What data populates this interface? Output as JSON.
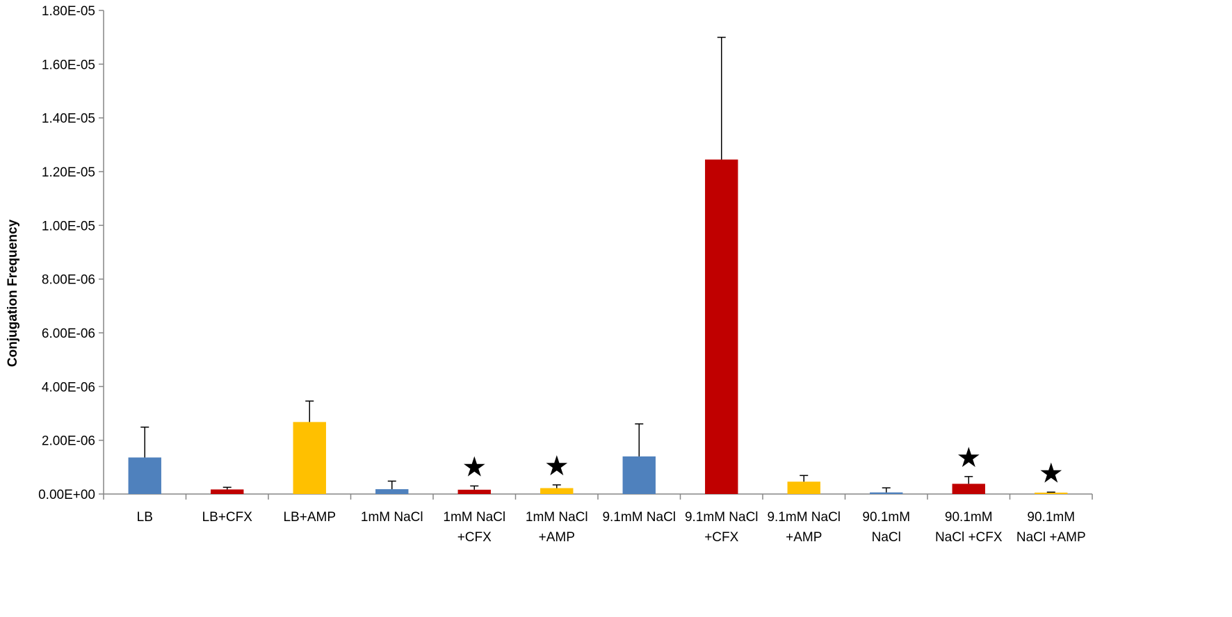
{
  "chart_data": {
    "type": "bar",
    "title": "",
    "xlabel": "",
    "ylabel": "Conjugation Frequency",
    "ylim": [
      0,
      1.8e-05
    ],
    "yticks": [
      {
        "value": 0,
        "label": "0.00E+00"
      },
      {
        "value": 2e-06,
        "label": "2.00E-06"
      },
      {
        "value": 4e-06,
        "label": "4.00E-06"
      },
      {
        "value": 6e-06,
        "label": "6.00E-06"
      },
      {
        "value": 8e-06,
        "label": "8.00E-06"
      },
      {
        "value": 1e-05,
        "label": "1.00E-05"
      },
      {
        "value": 1.2e-05,
        "label": "1.20E-05"
      },
      {
        "value": 1.4e-05,
        "label": "1.40E-05"
      },
      {
        "value": 1.6e-05,
        "label": "1.60E-05"
      },
      {
        "value": 1.8e-05,
        "label": "1.80E-05"
      }
    ],
    "grid": false,
    "legend": "none",
    "categories": [
      [
        "LB"
      ],
      [
        "LB+CFX"
      ],
      [
        "LB+AMP"
      ],
      [
        "1mM NaCl"
      ],
      [
        "1mM NaCl",
        "+CFX"
      ],
      [
        "1mM NaCl",
        "+AMP"
      ],
      [
        "9.1mM NaCl"
      ],
      [
        "9.1mM NaCl",
        "+CFX"
      ],
      [
        "9.1mM NaCl",
        "+AMP"
      ],
      [
        "90.1mM",
        "NaCl"
      ],
      [
        "90.1mM",
        "NaCl +CFX"
      ],
      [
        "90.1mM",
        "NaCl +AMP"
      ]
    ],
    "values": [
      1.36e-06,
      1.7e-07,
      2.68e-06,
      1.8e-07,
      1.6e-07,
      2.2e-07,
      1.4e-06,
      1.245e-05,
      4.6e-07,
      6e-08,
      3.8e-07,
      3e-08
    ],
    "error_plus": [
      1.13e-06,
      8e-08,
      7.8e-07,
      3e-07,
      1.4e-07,
      1.2e-07,
      1.21e-06,
      4.55e-06,
      2.3e-07,
      1.7e-07,
      2.7e-07,
      4e-08
    ],
    "colors": [
      "#4f81bd",
      "#c00000",
      "#ffc000",
      "#4f81bd",
      "#c00000",
      "#ffc000",
      "#4f81bd",
      "#c00000",
      "#ffc000",
      "#4f81bd",
      "#c00000",
      "#ffc000"
    ],
    "annotations": [
      {
        "category_index": 4,
        "symbol": "★"
      },
      {
        "category_index": 5,
        "symbol": "★"
      },
      {
        "category_index": 10,
        "symbol": "★"
      },
      {
        "category_index": 11,
        "symbol": "★"
      }
    ]
  }
}
